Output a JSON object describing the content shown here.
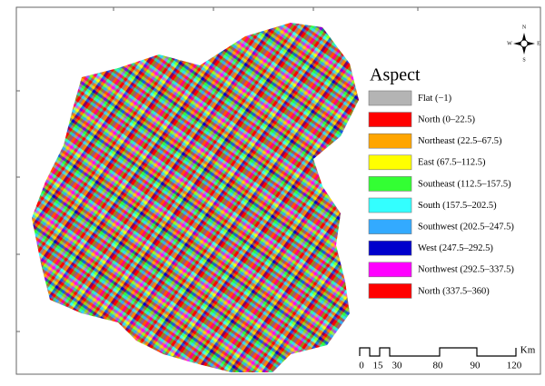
{
  "legend": {
    "title": "Aspect",
    "items": [
      {
        "label": "Flat (−1)",
        "color": "#b4b4b4"
      },
      {
        "label": "North (0–22.5)",
        "color": "#ff0000"
      },
      {
        "label": "Northeast (22.5–67.5)",
        "color": "#ffa500"
      },
      {
        "label": "East (67.5–112.5)",
        "color": "#ffff00"
      },
      {
        "label": "Southeast (112.5–157.5)",
        "color": "#33ff33"
      },
      {
        "label": "South (157.5–202.5)",
        "color": "#33ffff"
      },
      {
        "label": "Southwest (202.5–247.5)",
        "color": "#33aaff"
      },
      {
        "label": "West (247.5–292.5)",
        "color": "#0000cc"
      },
      {
        "label": "Northwest (292.5–337.5)",
        "color": "#ff00ff"
      },
      {
        "label": "North (337.5–360)",
        "color": "#ff0000"
      }
    ]
  },
  "scale_bar": {
    "labels": [
      "0",
      "15",
      "30",
      "80",
      "90",
      "120"
    ],
    "unit": "Km"
  },
  "compass": {
    "north": "N",
    "east": "E",
    "south": "S",
    "west": "W"
  }
}
